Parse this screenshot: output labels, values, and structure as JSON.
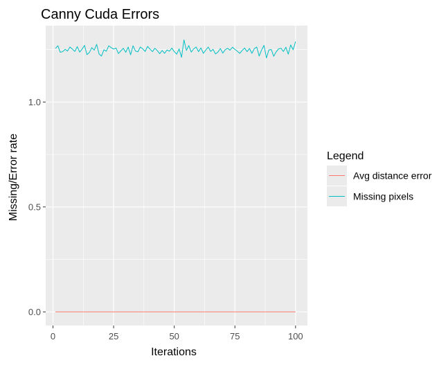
{
  "chart_data": {
    "type": "line",
    "title": "Canny Cuda Errors",
    "xlabel": "Iterations",
    "ylabel": "Missing/Error rate",
    "xlim": [
      -3.0,
      104.9
    ],
    "ylim": [
      -0.065,
      1.364
    ],
    "x_ticks": [
      0,
      25,
      50,
      75,
      100
    ],
    "y_ticks": [
      0.0,
      0.5,
      1.0
    ],
    "x_tick_labels": [
      "0",
      "25",
      "50",
      "75",
      "100"
    ],
    "y_tick_labels": [
      "0.0",
      "0.5",
      "1.0"
    ],
    "grid": true,
    "background": "#ebebeb",
    "gridline_color": "#ffffff",
    "legend": {
      "title": "Legend",
      "placement": "right",
      "entries": [
        "Avg distance error",
        "Missing pixels"
      ]
    },
    "x": [
      1,
      2,
      3,
      4,
      5,
      6,
      7,
      8,
      9,
      10,
      11,
      12,
      13,
      14,
      15,
      16,
      17,
      18,
      19,
      20,
      21,
      22,
      23,
      24,
      25,
      26,
      27,
      28,
      29,
      30,
      31,
      32,
      33,
      34,
      35,
      36,
      37,
      38,
      39,
      40,
      41,
      42,
      43,
      44,
      45,
      46,
      47,
      48,
      49,
      50,
      51,
      52,
      53,
      54,
      55,
      56,
      57,
      58,
      59,
      60,
      61,
      62,
      63,
      64,
      65,
      66,
      67,
      68,
      69,
      70,
      71,
      72,
      73,
      74,
      75,
      76,
      77,
      78,
      79,
      80,
      81,
      82,
      83,
      84,
      85,
      86,
      87,
      88,
      89,
      90,
      91,
      92,
      93,
      94,
      95,
      96,
      97,
      98,
      99,
      100
    ],
    "series": [
      {
        "name": "Avg distance error",
        "color": "#f8766d",
        "values": [
          0,
          0,
          0,
          0,
          0,
          0,
          0,
          0,
          0,
          0,
          0,
          0,
          0,
          0,
          0,
          0,
          0,
          0,
          0,
          0,
          0,
          0,
          0,
          0,
          0,
          0,
          0,
          0,
          0,
          0,
          0,
          0,
          0,
          0,
          0,
          0,
          0,
          0,
          0,
          0,
          0,
          0,
          0,
          0,
          0,
          0,
          0,
          0,
          0,
          0,
          0,
          0,
          0,
          0,
          0,
          0,
          0,
          0,
          0,
          0,
          0,
          0,
          0,
          0,
          0,
          0,
          0,
          0,
          0,
          0,
          0,
          0,
          0,
          0,
          0,
          0,
          0,
          0,
          0,
          0,
          0,
          0,
          0,
          0,
          0,
          0,
          0,
          0,
          0,
          0,
          0,
          0,
          0,
          0,
          0,
          0,
          0,
          0,
          0,
          0
        ]
      },
      {
        "name": "Missing pixels",
        "color": "#00bfc4",
        "values": [
          1.255,
          1.268,
          1.237,
          1.24,
          1.251,
          1.243,
          1.262,
          1.252,
          1.241,
          1.264,
          1.238,
          1.252,
          1.27,
          1.226,
          1.236,
          1.259,
          1.247,
          1.275,
          1.229,
          1.219,
          1.249,
          1.242,
          1.268,
          1.259,
          1.252,
          1.257,
          1.231,
          1.244,
          1.256,
          1.237,
          1.262,
          1.225,
          1.268,
          1.243,
          1.239,
          1.262,
          1.253,
          1.241,
          1.265,
          1.252,
          1.24,
          1.256,
          1.245,
          1.23,
          1.246,
          1.232,
          1.248,
          1.242,
          1.257,
          1.24,
          1.228,
          1.253,
          1.213,
          1.296,
          1.246,
          1.269,
          1.238,
          1.253,
          1.262,
          1.24,
          1.258,
          1.232,
          1.248,
          1.262,
          1.241,
          1.251,
          1.229,
          1.238,
          1.255,
          1.233,
          1.249,
          1.256,
          1.247,
          1.261,
          1.251,
          1.242,
          1.232,
          1.246,
          1.257,
          1.24,
          1.255,
          1.232,
          1.254,
          1.262,
          1.219,
          1.248,
          1.27,
          1.21,
          1.248,
          1.25,
          1.218,
          1.239,
          1.253,
          1.256,
          1.241,
          1.261,
          1.228,
          1.272,
          1.249,
          1.288
        ]
      }
    ]
  }
}
